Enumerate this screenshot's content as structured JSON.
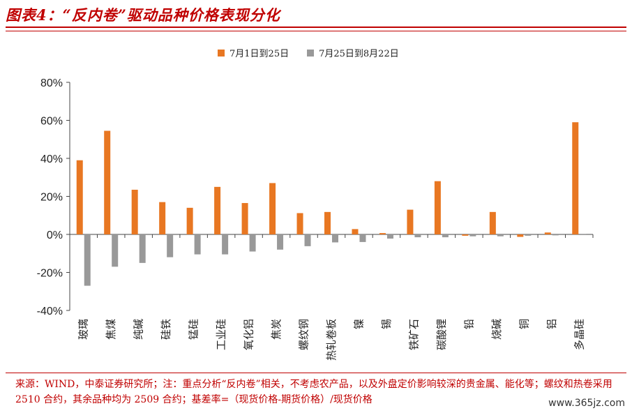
{
  "title": "图表4：“反内卷”驱动品种价格表现分化",
  "legend": {
    "series1": "7月1日到25日",
    "series2": "7月25日到8月22日"
  },
  "colors": {
    "series1": "#e87722",
    "series2": "#999999",
    "accent": "#c00000"
  },
  "chart_data": {
    "type": "bar",
    "categories": [
      "玻璃",
      "焦煤",
      "纯碱",
      "硅铁",
      "锰硅",
      "工业硅",
      "氧化铝",
      "焦炭",
      "螺纹钢",
      "热轧卷板",
      "镍",
      "锡",
      "铁矿石",
      "碳酸锂",
      "铅",
      "烧碱",
      "铜",
      "铝",
      "多晶硅"
    ],
    "series": [
      {
        "name": "7月1日到25日",
        "values": [
          0.39,
          0.545,
          0.235,
          0.17,
          0.14,
          0.25,
          0.165,
          0.27,
          0.112,
          0.118,
          0.028,
          0.007,
          0.13,
          0.28,
          -0.007,
          0.118,
          -0.013,
          0.01,
          0.59
        ]
      },
      {
        "name": "7月25日到8月22日",
        "values": [
          -0.27,
          -0.17,
          -0.15,
          -0.12,
          -0.105,
          -0.105,
          -0.09,
          -0.08,
          -0.062,
          -0.042,
          -0.04,
          -0.022,
          -0.015,
          -0.015,
          -0.01,
          -0.01,
          -0.007,
          -0.005,
          0.003
        ]
      }
    ],
    "ylim": [
      -0.4,
      0.8
    ],
    "yticks": [
      "80%",
      "60%",
      "40%",
      "20%",
      "0%",
      "-20%",
      "-40%"
    ],
    "ytick_values": [
      0.8,
      0.6,
      0.4,
      0.2,
      0.0,
      -0.2,
      -0.4
    ],
    "grid": false,
    "legend_position": "top"
  },
  "footnote": "来源：WIND，中泰证券研究所；注：重点分析“反内卷”相关，不考虑农产品，以及外盘定价影响较深的贵金属、能化等；螺纹和热卷采用 2510 合约，其余品种均为 2509 合约；基差率=（现货价格-期货价格）/现货价格",
  "watermark": "www.365jz.com"
}
